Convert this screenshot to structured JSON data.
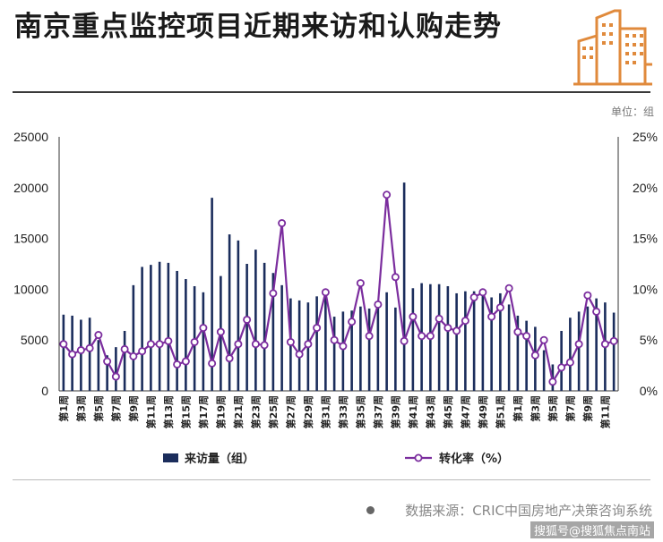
{
  "title": "南京重点监控项目近期来访和认购走势",
  "unit_label": "单位：组",
  "source": "数据来源：CRIC中国房地产决策咨询系统",
  "watermark": "搜狐号@搜狐焦点南站",
  "colors": {
    "bar": "#1b2d5c",
    "line": "#7b2d9e",
    "logo": "#e08a3c"
  },
  "chart_data": {
    "type": "bar",
    "categories": [
      "第1周",
      "第2周",
      "第3周",
      "第4周",
      "第5周",
      "第6周",
      "第7周",
      "第8周",
      "第9周",
      "第10周",
      "第11周",
      "第12周",
      "第13周",
      "第14周",
      "第15周",
      "第16周",
      "第17周",
      "第18周",
      "第19周",
      "第20周",
      "第21周",
      "第22周",
      "第23周",
      "第24周",
      "第25周",
      "第26周",
      "第27周",
      "第28周",
      "第29周",
      "第30周",
      "第31周",
      "第32周",
      "第33周",
      "第34周",
      "第35周",
      "第36周",
      "第37周",
      "第38周",
      "第39周",
      "第40周",
      "第41周",
      "第42周",
      "第43周",
      "第44周",
      "第45周",
      "第46周",
      "第47周",
      "第48周",
      "第49周",
      "第50周",
      "第51周",
      "第52周",
      "第1周",
      "第2周",
      "第3周",
      "第4周",
      "第5周",
      "第6周",
      "第7周",
      "第8周",
      "第9周",
      "第10周",
      "第11周",
      "第12周"
    ],
    "tick_labels": [
      "第1周",
      "第3周",
      "第5周",
      "第7周",
      "第9周",
      "第11周",
      "第13周",
      "第15周",
      "第17周",
      "第19周",
      "第21周",
      "第23周",
      "第25周",
      "第27周",
      "第29周",
      "第31周",
      "第33周",
      "第35周",
      "第37周",
      "第39周",
      "第41周",
      "第43周",
      "第45周",
      "第47周",
      "第49周",
      "第51周",
      "第1周",
      "第3周",
      "第5周",
      "第7周",
      "第9周",
      "第11周"
    ],
    "series": [
      {
        "name": "来访量（组）",
        "type": "bar",
        "axis": "left",
        "values": [
          7500,
          7400,
          7000,
          7200,
          5000,
          3500,
          4300,
          5900,
          10400,
          12200,
          12400,
          12700,
          12600,
          11800,
          11000,
          10300,
          9700,
          19000,
          11300,
          15400,
          14800,
          12500,
          13900,
          12600,
          11600,
          10400,
          9100,
          8900,
          8700,
          9300,
          9500,
          7300,
          7800,
          7900,
          8300,
          8100,
          8600,
          9700,
          8200,
          20500,
          10100,
          10600,
          10500,
          10500,
          10300,
          9600,
          9800,
          9800,
          9700,
          9200,
          9600,
          8500,
          7400,
          6900,
          6300,
          4000,
          2600,
          5900,
          7200,
          7800,
          8300,
          9100,
          8700,
          7700
        ]
      },
      {
        "name": "转化率（%）",
        "type": "line",
        "axis": "right",
        "values": [
          4.6,
          3.6,
          4.0,
          4.2,
          5.5,
          2.9,
          1.4,
          4.1,
          3.4,
          3.9,
          4.6,
          4.6,
          4.9,
          2.6,
          2.9,
          4.8,
          6.2,
          2.7,
          5.8,
          3.2,
          4.6,
          7.0,
          4.6,
          4.5,
          9.6,
          16.5,
          4.8,
          3.6,
          4.6,
          6.2,
          9.7,
          5.0,
          4.4,
          6.8,
          10.6,
          5.4,
          8.5,
          19.3,
          11.2,
          4.9,
          7.3,
          5.4,
          5.4,
          7.1,
          6.2,
          5.9,
          6.9,
          9.2,
          9.7,
          7.3,
          8.2,
          10.1,
          5.8,
          5.4,
          3.5,
          5.0,
          0.9,
          2.3,
          2.8,
          4.6,
          9.4,
          7.8,
          4.6,
          4.9
        ]
      }
    ],
    "ylim_left": [
      0,
      25000
    ],
    "yticks_left": [
      "0",
      "5000",
      "10000",
      "15000",
      "20000",
      "25000"
    ],
    "ylim_right": [
      0,
      25
    ],
    "yticks_right": [
      "0%",
      "5%",
      "10%",
      "15%",
      "20%",
      "25%"
    ],
    "legend": [
      "来访量（组）",
      "转化率（%）"
    ],
    "legend_position": "bottom"
  }
}
